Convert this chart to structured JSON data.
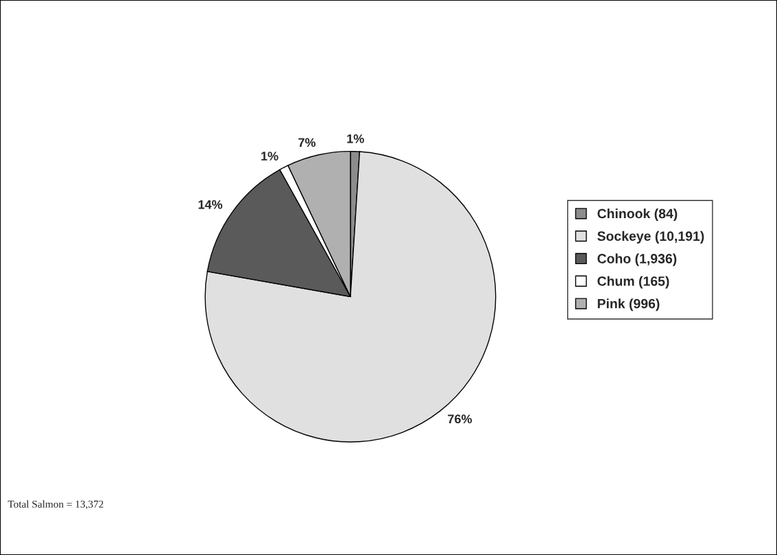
{
  "chart_data": {
    "type": "pie",
    "categories": [
      "Chinook (84)",
      "Sockeye (10,191)",
      "Coho (1,936)",
      "Chum (165)",
      "Pink (996)"
    ],
    "values": [
      1,
      76,
      14,
      1,
      7
    ],
    "colors": [
      "#8c8c8c",
      "#e0e0e0",
      "#5a5a5a",
      "#ffffff",
      "#b0b0b0"
    ],
    "value_labels": [
      "1%",
      "76%",
      "14%",
      "1%",
      "7%"
    ],
    "legend": "right",
    "annotations": [
      "Total Salmon = 13,372"
    ]
  }
}
